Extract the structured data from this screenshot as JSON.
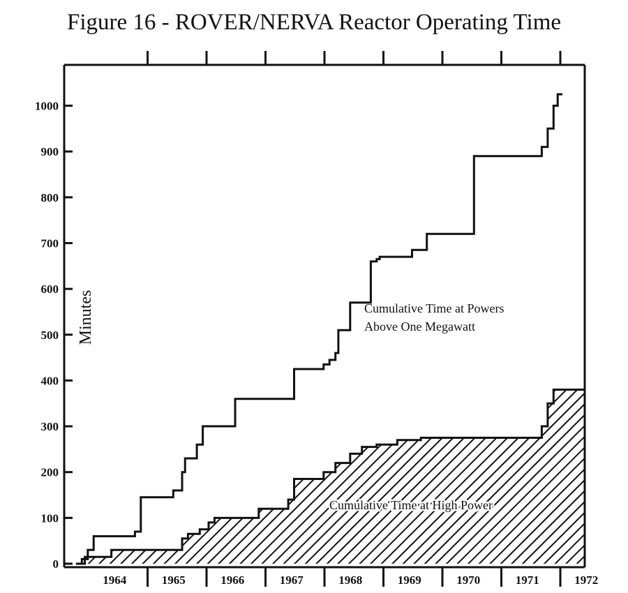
{
  "chart_data": {
    "type": "area",
    "title": "Figure 16 - ROVER/NERVA Reactor Operating Time",
    "xlabel": "",
    "ylabel": "Minutes",
    "xlim": [
      1964,
      1972.5
    ],
    "ylim": [
      0,
      1050
    ],
    "categories": [
      "1964",
      "1965",
      "1966",
      "1967",
      "1968",
      "1969",
      "1970",
      "1971",
      "1972"
    ],
    "yticks": [
      0,
      100,
      200,
      300,
      400,
      500,
      600,
      700,
      800,
      900,
      1000
    ],
    "grid": false,
    "legend": "none",
    "series": [
      {
        "name": "Cumulative Time at Powers Above One Megawatt",
        "style": "step-line",
        "x": [
          1963.75,
          1963.85,
          1963.95,
          1964.05,
          1964.5,
          1964.75,
          1964.85,
          1965.3,
          1965.4,
          1965.55,
          1965.6,
          1965.8,
          1965.9,
          1966.3,
          1966.45,
          1967.05,
          1967.45,
          1967.75,
          1967.95,
          1968.05,
          1968.15,
          1968.2,
          1968.4,
          1968.75,
          1968.85,
          1968.9,
          1969.45,
          1969.7,
          1970.5,
          1971.5,
          1971.65,
          1971.75,
          1971.85,
          1971.92,
          1972.0
        ],
        "y": [
          0,
          10,
          30,
          60,
          60,
          70,
          145,
          145,
          160,
          200,
          230,
          260,
          300,
          300,
          360,
          360,
          425,
          425,
          435,
          445,
          460,
          510,
          570,
          660,
          665,
          670,
          685,
          720,
          890,
          890,
          910,
          950,
          1000,
          1025,
          1025
        ]
      },
      {
        "name": "Cumulative Time at High Power",
        "style": "hatched-area",
        "x": [
          1963.75,
          1963.9,
          1964.2,
          1964.35,
          1964.75,
          1965.55,
          1965.65,
          1965.85,
          1966.0,
          1966.1,
          1966.4,
          1966.85,
          1967.05,
          1967.35,
          1967.45,
          1967.75,
          1967.95,
          1968.15,
          1968.4,
          1968.6,
          1968.85,
          1969.2,
          1969.6,
          1970.5,
          1971.5,
          1971.65,
          1971.75,
          1971.85,
          1971.95,
          1972.5
        ],
        "y": [
          0,
          15,
          15,
          30,
          30,
          55,
          65,
          75,
          90,
          100,
          100,
          120,
          120,
          140,
          185,
          185,
          200,
          220,
          240,
          255,
          260,
          270,
          275,
          275,
          275,
          300,
          350,
          380,
          380,
          380
        ]
      }
    ],
    "annotations": [
      {
        "text_lines": [
          "Cumulative Time at Powers",
          "Above One Megawatt"
        ]
      },
      {
        "text_lines": [
          "Cumulative Time at High Power"
        ]
      }
    ]
  }
}
